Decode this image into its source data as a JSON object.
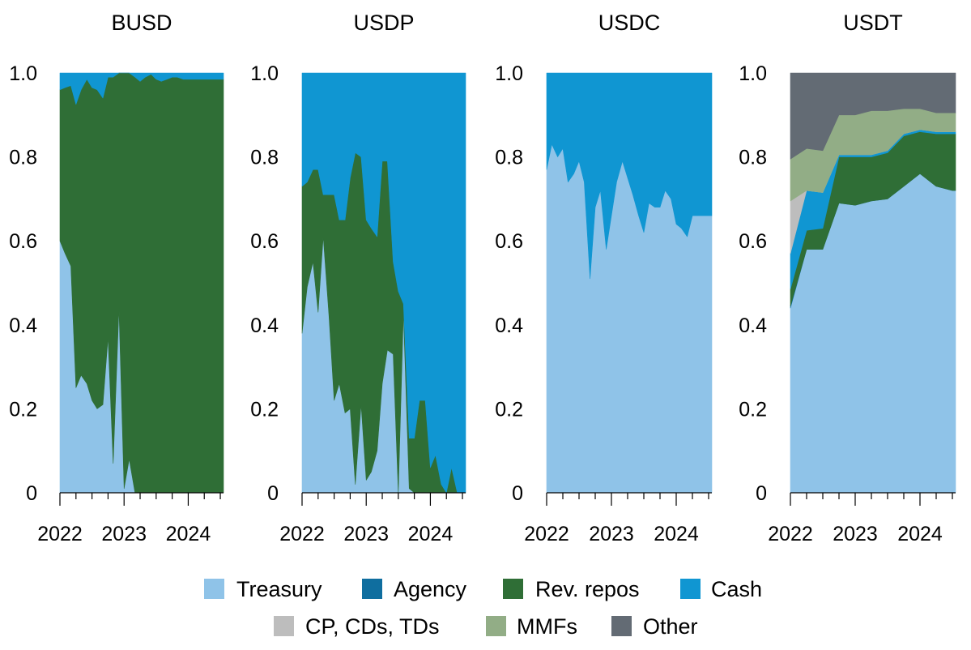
{
  "legend": {
    "treasury": "Treasury",
    "agency": "Agency",
    "rev_repos": "Rev. repos",
    "cash": "Cash",
    "cp_cds_tds": "CP, CDs, TDs",
    "mmfs": "MMFs",
    "other": "Other"
  },
  "colors": {
    "treasury": "#8fc3e8",
    "agency": "#0f6e9f",
    "rev_repos": "#2f6e36",
    "cash": "#1096d2",
    "cp_cds_tds": "#bdbdbd",
    "mmfs": "#92ad86",
    "other": "#636b74",
    "axis": "#000000"
  },
  "y_tick_labels": [
    "1.0",
    "0.8",
    "0.6",
    "0.4",
    "0.2",
    "0"
  ],
  "x_tick_labels": [
    "2022",
    "2023",
    "2024"
  ],
  "chart_data": [
    {
      "type": "area",
      "stacked": true,
      "title": "BUSD",
      "xlim": [
        2022.0,
        2024.55
      ],
      "ylim": [
        0,
        1
      ],
      "layer_order": [
        "treasury",
        "agency",
        "rev_repos",
        "cash",
        "cp_cds_tds",
        "mmfs",
        "other"
      ],
      "x": [
        2022.0,
        2022.08,
        2022.17,
        2022.25,
        2022.33,
        2022.42,
        2022.5,
        2022.58,
        2022.67,
        2022.75,
        2022.83,
        2022.92,
        2023.0,
        2023.08,
        2023.17,
        2023.25,
        2023.33,
        2023.42,
        2023.5,
        2023.58,
        2023.67,
        2023.75,
        2023.83,
        2023.92,
        2024.0,
        2024.08,
        2024.17,
        2024.25,
        2024.33,
        2024.42,
        2024.5,
        2024.55
      ],
      "series": [
        {
          "key": "treasury",
          "values": [
            0.6,
            0.57,
            0.54,
            0.25,
            0.28,
            0.26,
            0.22,
            0.2,
            0.21,
            0.37,
            0.07,
            0.44,
            0.01,
            0.08,
            0.0,
            0.0,
            0.0,
            0.0,
            0.0,
            0.0,
            0.0,
            0.0,
            0.0,
            0.0,
            0.0,
            0.0,
            0.0,
            0.0,
            0.0,
            0.0,
            0.0,
            0.0
          ]
        },
        {
          "key": "rev_repos",
          "values": [
            0.36,
            0.395,
            0.43,
            0.675,
            0.68,
            0.725,
            0.745,
            0.76,
            0.73,
            0.62,
            0.92,
            0.56,
            0.99,
            0.92,
            0.99,
            0.98,
            0.99,
            0.997,
            0.985,
            0.98,
            0.985,
            0.99,
            0.99,
            0.985,
            0.985,
            0.985,
            0.985,
            0.985,
            0.985,
            0.985,
            0.985,
            0.985
          ]
        },
        {
          "key": "cash",
          "values": [
            0.04,
            0.035,
            0.03,
            0.075,
            0.04,
            0.015,
            0.035,
            0.04,
            0.06,
            0.01,
            0.01,
            0.0,
            0.0,
            0.0,
            0.01,
            0.02,
            0.01,
            0.003,
            0.015,
            0.02,
            0.015,
            0.01,
            0.01,
            0.015,
            0.015,
            0.015,
            0.015,
            0.015,
            0.015,
            0.015,
            0.015,
            0.015
          ]
        }
      ]
    },
    {
      "type": "area",
      "stacked": true,
      "title": "USDP",
      "xlim": [
        2022.0,
        2024.55
      ],
      "ylim": [
        0,
        1
      ],
      "layer_order": [
        "treasury",
        "agency",
        "rev_repos",
        "cash",
        "cp_cds_tds",
        "mmfs",
        "other"
      ],
      "x": [
        2022.0,
        2022.08,
        2022.17,
        2022.25,
        2022.33,
        2022.42,
        2022.5,
        2022.58,
        2022.67,
        2022.75,
        2022.83,
        2022.92,
        2023.0,
        2023.08,
        2023.17,
        2023.25,
        2023.33,
        2023.42,
        2023.5,
        2023.58,
        2023.67,
        2023.75,
        2023.83,
        2023.92,
        2024.0,
        2024.08,
        2024.17,
        2024.25,
        2024.33,
        2024.42,
        2024.5,
        2024.55
      ],
      "series": [
        {
          "key": "treasury",
          "values": [
            0.38,
            0.49,
            0.55,
            0.43,
            0.61,
            0.42,
            0.22,
            0.26,
            0.19,
            0.2,
            0.02,
            0.21,
            0.03,
            0.05,
            0.1,
            0.26,
            0.34,
            0.33,
            0.0,
            0.43,
            0.01,
            0.0,
            0.0,
            0.0,
            0.0,
            0.0,
            0.0,
            0.0,
            0.0,
            0.0,
            0.0,
            0.0
          ]
        },
        {
          "key": "rev_repos",
          "values": [
            0.35,
            0.25,
            0.22,
            0.34,
            0.1,
            0.29,
            0.49,
            0.39,
            0.46,
            0.55,
            0.79,
            0.59,
            0.62,
            0.58,
            0.51,
            0.53,
            0.45,
            0.22,
            0.48,
            0.02,
            0.12,
            0.13,
            0.22,
            0.22,
            0.06,
            0.09,
            0.02,
            0.0,
            0.06,
            0.0,
            0.0,
            0.0
          ]
        },
        {
          "key": "cash",
          "values": [
            0.27,
            0.26,
            0.23,
            0.23,
            0.29,
            0.29,
            0.29,
            0.35,
            0.35,
            0.25,
            0.19,
            0.2,
            0.35,
            0.37,
            0.39,
            0.21,
            0.21,
            0.45,
            0.52,
            0.55,
            0.87,
            0.87,
            0.78,
            0.78,
            0.94,
            0.91,
            0.98,
            1.0,
            0.94,
            1.0,
            1.0,
            1.0
          ]
        }
      ]
    },
    {
      "type": "area",
      "stacked": true,
      "title": "USDC",
      "xlim": [
        2022.0,
        2024.55
      ],
      "ylim": [
        0,
        1
      ],
      "layer_order": [
        "treasury",
        "agency",
        "rev_repos",
        "cash",
        "cp_cds_tds",
        "mmfs",
        "other"
      ],
      "x": [
        2022.0,
        2022.08,
        2022.17,
        2022.25,
        2022.33,
        2022.42,
        2022.5,
        2022.58,
        2022.67,
        2022.75,
        2022.83,
        2022.92,
        2023.0,
        2023.08,
        2023.17,
        2023.25,
        2023.33,
        2023.42,
        2023.5,
        2023.58,
        2023.67,
        2023.75,
        2023.83,
        2023.92,
        2024.0,
        2024.08,
        2024.17,
        2024.25,
        2024.33,
        2024.42,
        2024.5,
        2024.55
      ],
      "series": [
        {
          "key": "treasury",
          "values": [
            0.77,
            0.83,
            0.8,
            0.82,
            0.74,
            0.76,
            0.79,
            0.74,
            0.51,
            0.68,
            0.72,
            0.58,
            0.66,
            0.74,
            0.79,
            0.75,
            0.71,
            0.66,
            0.62,
            0.69,
            0.68,
            0.68,
            0.72,
            0.7,
            0.64,
            0.63,
            0.61,
            0.66,
            0.66,
            0.66,
            0.66,
            0.66
          ]
        },
        {
          "key": "cash",
          "values": [
            0.23,
            0.17,
            0.2,
            0.18,
            0.26,
            0.24,
            0.21,
            0.26,
            0.49,
            0.32,
            0.28,
            0.42,
            0.34,
            0.26,
            0.21,
            0.25,
            0.29,
            0.34,
            0.38,
            0.31,
            0.32,
            0.32,
            0.28,
            0.3,
            0.36,
            0.37,
            0.39,
            0.34,
            0.34,
            0.34,
            0.34,
            0.34
          ]
        }
      ]
    },
    {
      "type": "area",
      "stacked": true,
      "title": "USDT",
      "xlim": [
        2022.0,
        2024.55
      ],
      "ylim": [
        0,
        1
      ],
      "layer_order": [
        "treasury",
        "agency",
        "rev_repos",
        "cash",
        "cp_cds_tds",
        "mmfs",
        "other"
      ],
      "x": [
        2022.0,
        2022.25,
        2022.5,
        2022.75,
        2023.0,
        2023.25,
        2023.5,
        2023.75,
        2024.0,
        2024.25,
        2024.5,
        2024.55
      ],
      "series": [
        {
          "key": "treasury",
          "values": [
            0.44,
            0.58,
            0.58,
            0.69,
            0.685,
            0.695,
            0.7,
            0.73,
            0.76,
            0.73,
            0.72,
            0.72
          ]
        },
        {
          "key": "agency",
          "values": [
            0.005,
            0.0,
            0.0,
            0.0,
            0.0,
            0.0,
            0.0,
            0.0,
            0.0,
            0.0,
            0.0,
            0.0
          ]
        },
        {
          "key": "rev_repos",
          "values": [
            0.04,
            0.045,
            0.05,
            0.11,
            0.115,
            0.105,
            0.11,
            0.12,
            0.1,
            0.125,
            0.135,
            0.135
          ]
        },
        {
          "key": "cash",
          "values": [
            0.085,
            0.095,
            0.085,
            0.005,
            0.005,
            0.005,
            0.005,
            0.005,
            0.005,
            0.005,
            0.005,
            0.005
          ]
        },
        {
          "key": "cp_cds_tds",
          "values": [
            0.125,
            0.0,
            0.0,
            0.0,
            0.0,
            0.0,
            0.0,
            0.0,
            0.0,
            0.0,
            0.0,
            0.0
          ]
        },
        {
          "key": "mmfs",
          "values": [
            0.1,
            0.1,
            0.1,
            0.095,
            0.095,
            0.105,
            0.095,
            0.06,
            0.05,
            0.045,
            0.045,
            0.045
          ]
        },
        {
          "key": "other",
          "values": [
            0.205,
            0.18,
            0.185,
            0.1,
            0.1,
            0.09,
            0.09,
            0.085,
            0.085,
            0.095,
            0.095,
            0.095
          ]
        }
      ]
    }
  ]
}
